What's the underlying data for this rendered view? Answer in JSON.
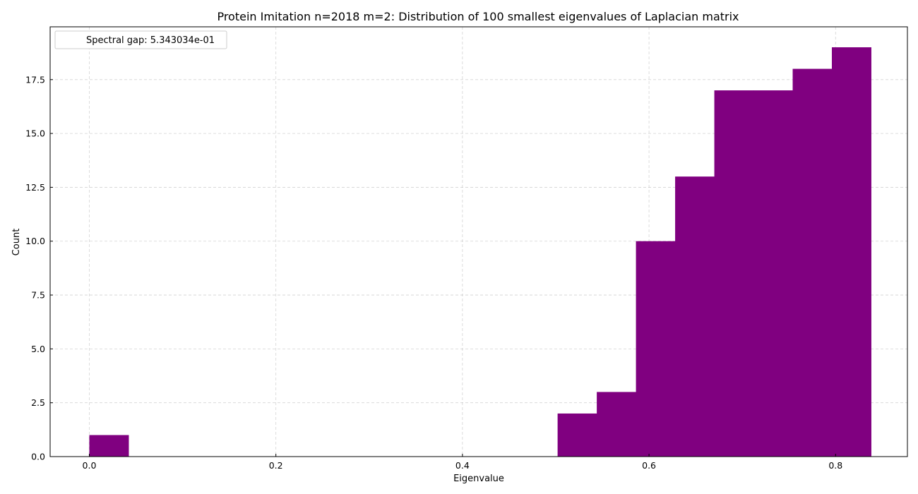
{
  "chart_data": {
    "type": "bar",
    "title": "Protein Imitation n=2018 m=2: Distribution of 100 smallest eigenvalues of Laplacian matrix",
    "xlabel": "Eigenvalue",
    "ylabel": "Count",
    "xlim": [
      -0.042,
      0.877
    ],
    "ylim": [
      0,
      19.95
    ],
    "xticks": [
      0.0,
      0.2,
      0.4,
      0.6,
      0.8
    ],
    "xtick_labels": [
      "0.0",
      "0.2",
      "0.4",
      "0.6",
      "0.8"
    ],
    "yticks": [
      0.0,
      2.5,
      5.0,
      7.5,
      10.0,
      12.5,
      15.0,
      17.5
    ],
    "ytick_labels": [
      "0.0",
      "2.5",
      "5.0",
      "7.5",
      "10.0",
      "12.5",
      "15.0",
      "17.5"
    ],
    "grid": true,
    "color": "#800080",
    "bins": [
      {
        "x0": 0.0,
        "x1": 0.042,
        "count": 1
      },
      {
        "x0": 0.502,
        "x1": 0.544,
        "count": 2
      },
      {
        "x0": 0.544,
        "x1": 0.586,
        "count": 3
      },
      {
        "x0": 0.586,
        "x1": 0.628,
        "count": 10
      },
      {
        "x0": 0.628,
        "x1": 0.67,
        "count": 13
      },
      {
        "x0": 0.67,
        "x1": 0.712,
        "count": 17
      },
      {
        "x0": 0.712,
        "x1": 0.754,
        "count": 17
      },
      {
        "x0": 0.754,
        "x1": 0.796,
        "count": 18
      },
      {
        "x0": 0.796,
        "x1": 0.838,
        "count": 19
      }
    ],
    "legend": {
      "placement": "top-left",
      "entries": [
        "Spectral gap: 5.343034e-01"
      ]
    }
  }
}
